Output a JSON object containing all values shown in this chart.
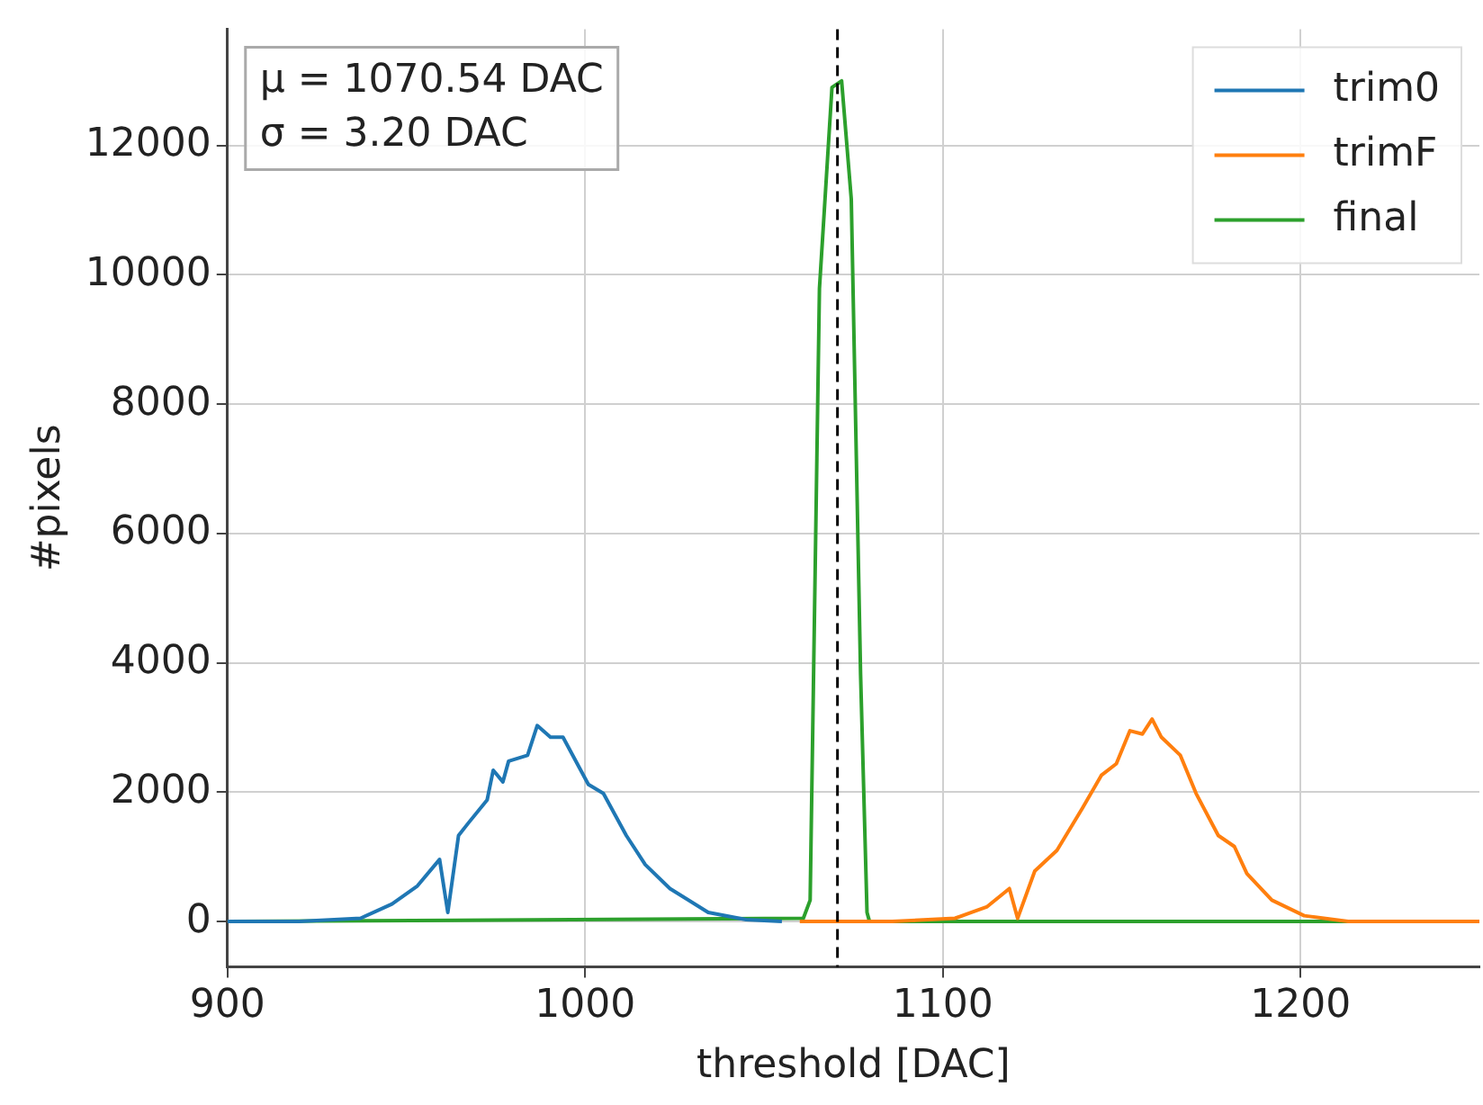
{
  "chart_data": {
    "type": "line",
    "xlabel": "threshold [DAC]",
    "ylabel": "#pixels",
    "xlim": [
      900,
      1250
    ],
    "xticks": [
      900,
      1000,
      1100,
      1200
    ],
    "ylim": [
      -700,
      13800
    ],
    "yticks": [
      0,
      2000,
      4000,
      6000,
      8000,
      10000,
      12000
    ],
    "grid": true,
    "legend": "top right",
    "marker": "none",
    "line_style": "solid",
    "annotations": [
      "μ = 1070.54 DAC",
      "σ = 3.20 DAC"
    ],
    "ref_lines": [
      {
        "axis": "x",
        "value": 1070.54,
        "color": "#000000",
        "line_style": "dashed"
      }
    ],
    "series": [
      {
        "name": "trim0",
        "color": "#1f77b4",
        "x": [
          900,
          920,
          937.2,
          946,
          953.1,
          959.3,
          961.6,
          964.6,
          967.3,
          972.6,
          974.3,
          977,
          978.6,
          983.9,
          986.6,
          990.3,
          993.8,
          1000.9,
          1005.1,
          1011.5,
          1016.8,
          1023.7,
          1034.4,
          1045,
          1055
        ],
        "values": [
          0,
          0,
          50,
          270,
          550,
          960,
          140,
          1330,
          1520,
          1880,
          2340,
          2160,
          2480,
          2570,
          3030,
          2850,
          2850,
          2120,
          1980,
          1330,
          880,
          510,
          140,
          30,
          0
        ]
      },
      {
        "name": "trimF",
        "color": "#ff7f0e",
        "x": [
          1060,
          1085.9,
          1103.4,
          1112.4,
          1118.6,
          1120.9,
          1125.7,
          1131.9,
          1139,
          1144.3,
          1148.5,
          1152.3,
          1155.8,
          1158.5,
          1161.1,
          1166.4,
          1170.8,
          1177,
          1181.5,
          1185,
          1192,
          1201,
          1213.3,
          1250
        ],
        "values": [
          0,
          0,
          50,
          230,
          510,
          50,
          780,
          1100,
          1750,
          2260,
          2440,
          2950,
          2900,
          3130,
          2850,
          2570,
          1980,
          1330,
          1160,
          740,
          330,
          90,
          0,
          0
        ]
      },
      {
        "name": "final",
        "color": "#2ca02c",
        "x": [
          900,
          1061,
          1062.9,
          1065.5,
          1069,
          1071.7,
          1074.4,
          1077,
          1078.8,
          1079.5,
          1250
        ],
        "values": [
          0,
          50,
          330,
          9790,
          12900,
          13000,
          11170,
          3820,
          140,
          0,
          0
        ]
      }
    ]
  }
}
